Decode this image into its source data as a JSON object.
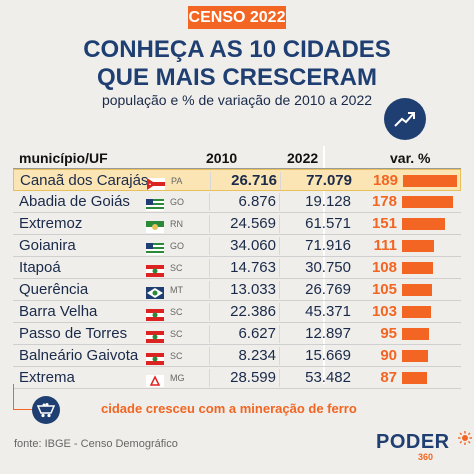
{
  "badge": "CENSO 2022",
  "title_line1": "CONHEÇA AS 10 CIDADES",
  "title_line2": "QUE MAIS CRESCERAM",
  "subtitle": "população e % de variação de 2010 a 2022",
  "icons": {
    "trend": "trend-up-icon",
    "mining": "mining-cart-icon",
    "logo_sun": "sun-icon"
  },
  "colors": {
    "accent": "#f26522",
    "navy": "#1f3f72",
    "highlight": "#fbe5b4"
  },
  "chart_data": {
    "type": "table",
    "columns": [
      "município/UF",
      "2010",
      "2022",
      "var. %"
    ],
    "max_var": 189,
    "rows": [
      {
        "name": "Canaã dos Carajás",
        "uf": "PA",
        "v2010": "26.716",
        "v2022": "77.079",
        "var": 189,
        "highlight": true,
        "flag": "pa"
      },
      {
        "name": "Abadia de Goiás",
        "uf": "GO",
        "v2010": "6.876",
        "v2022": "19.128",
        "var": 178,
        "highlight": false,
        "flag": "go"
      },
      {
        "name": "Extremoz",
        "uf": "RN",
        "v2010": "24.569",
        "v2022": "61.571",
        "var": 151,
        "highlight": false,
        "flag": "rn"
      },
      {
        "name": "Goianira",
        "uf": "GO",
        "v2010": "34.060",
        "v2022": "71.916",
        "var": 111,
        "highlight": false,
        "flag": "go"
      },
      {
        "name": "Itapoá",
        "uf": "SC",
        "v2010": "14.763",
        "v2022": "30.750",
        "var": 108,
        "highlight": false,
        "flag": "sc"
      },
      {
        "name": "Querência",
        "uf": "MT",
        "v2010": "13.033",
        "v2022": "26.769",
        "var": 105,
        "highlight": false,
        "flag": "mt"
      },
      {
        "name": "Barra Velha",
        "uf": "SC",
        "v2010": "22.386",
        "v2022": "45.371",
        "var": 103,
        "highlight": false,
        "flag": "sc"
      },
      {
        "name": "Passo de Torres",
        "uf": "SC",
        "v2010": "6.627",
        "v2022": "12.897",
        "var": 95,
        "highlight": false,
        "flag": "sc"
      },
      {
        "name": "Balneário Gaivota",
        "uf": "SC",
        "v2010": "8.234",
        "v2022": "15.669",
        "var": 90,
        "highlight": false,
        "flag": "sc"
      },
      {
        "name": "Extrema",
        "uf": "MG",
        "v2010": "28.599",
        "v2022": "53.482",
        "var": 87,
        "highlight": false,
        "flag": "mg"
      }
    ]
  },
  "note": "cidade cresceu com a mineração de ferro",
  "source": "fonte: IBGE - Censo Demográfico",
  "logo": {
    "main": "PODER",
    "sub": "360"
  }
}
